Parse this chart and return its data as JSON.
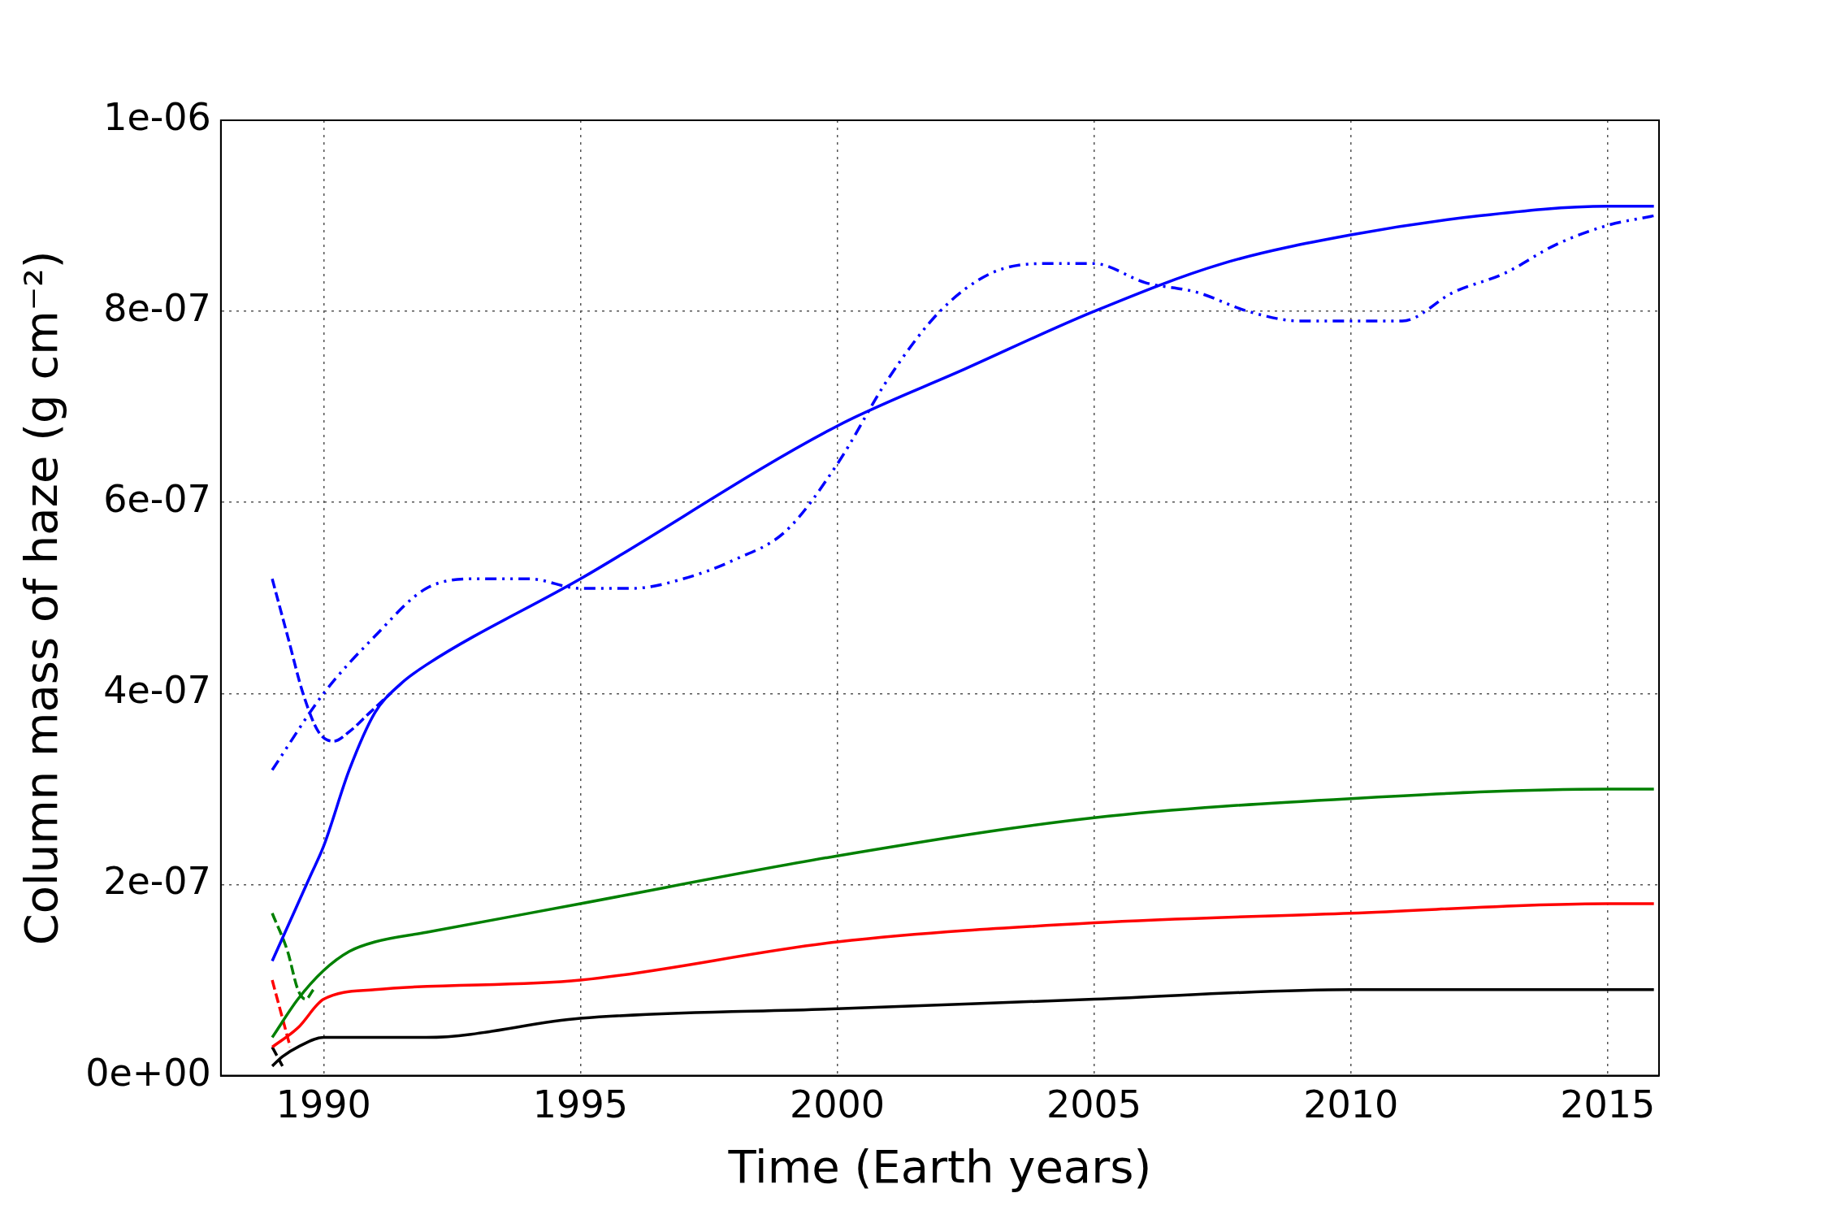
{
  "chart_data": {
    "type": "line",
    "xlabel": "Time (Earth years)",
    "ylabel": "Column mass of haze (g cm⁻²)",
    "xlim": [
      1988,
      2016
    ],
    "xticks": [
      1990,
      1995,
      2000,
      2005,
      2010,
      2015
    ],
    "ylim": [
      0,
      1e-06
    ],
    "yticks": [
      {
        "value": 0,
        "label": "0e+00"
      },
      {
        "value": 2e-07,
        "label": "2e-07"
      },
      {
        "value": 4e-07,
        "label": "4e-07"
      },
      {
        "value": 6e-07,
        "label": "6e-07"
      },
      {
        "value": 8e-07,
        "label": "8e-07"
      },
      {
        "value": 1e-06,
        "label": "1e-06"
      }
    ],
    "grid": true,
    "legend": false,
    "marker": "none",
    "series": [
      {
        "color": "#0000ff",
        "line_style": "solid",
        "x": [
          1989.0,
          1989.25,
          1989.5,
          1989.75,
          1990,
          1990.5,
          1991,
          1991.5,
          1992,
          1995,
          2000,
          2002.5,
          2005,
          2007.5,
          2010,
          2012.5,
          2015,
          2015.9
        ],
        "values": [
          1.2e-07,
          1.5e-07,
          1.8e-07,
          2.1e-07,
          2.4e-07,
          3.2e-07,
          3.8e-07,
          4.1e-07,
          4.3e-07,
          5.2e-07,
          6.8e-07,
          7.4e-07,
          8e-07,
          8.5e-07,
          8.8e-07,
          9e-07,
          9.1e-07,
          9.1e-07
        ]
      },
      {
        "color": "#0000ff",
        "line_style": "dotted",
        "x": [
          1989.0,
          1990,
          1991,
          1992,
          1993,
          1994,
          1995,
          1996,
          1997,
          1998,
          1999,
          2000,
          2001,
          2002,
          2003,
          2004,
          2005,
          2006,
          2007,
          2008,
          2009,
          2010,
          2011,
          2012,
          2013,
          2014,
          2015,
          2015.9
        ],
        "values": [
          3.2e-07,
          4e-07,
          4.6e-07,
          5.1e-07,
          5.2e-07,
          5.2e-07,
          5.1e-07,
          5.1e-07,
          5.2e-07,
          5.4e-07,
          5.7e-07,
          6.4e-07,
          7.3e-07,
          8e-07,
          8.4e-07,
          8.5e-07,
          8.5e-07,
          8.3e-07,
          8.2e-07,
          8e-07,
          7.9e-07,
          7.9e-07,
          7.9e-07,
          8.2e-07,
          8.4e-07,
          8.7e-07,
          8.9e-07,
          9e-07
        ]
      },
      {
        "color": "#0000ff",
        "line_style": "dashed",
        "x": [
          1989.0,
          1989.3,
          1989.6,
          1989.9,
          1990.2,
          1990.5,
          1990.9,
          1991.3
        ],
        "values": [
          5.2e-07,
          4.6e-07,
          4e-07,
          3.6e-07,
          3.5e-07,
          3.6e-07,
          3.8e-07,
          4e-07
        ]
      },
      {
        "color": "#008000",
        "line_style": "solid",
        "x": [
          1989.0,
          1989.5,
          1990,
          1990.5,
          1991,
          1992,
          1995,
          2000,
          2005,
          2010,
          2015,
          2015.9
        ],
        "values": [
          4e-08,
          8e-08,
          1.1e-07,
          1.3e-07,
          1.4e-07,
          1.5e-07,
          1.8e-07,
          2.3e-07,
          2.7e-07,
          2.9e-07,
          3e-07,
          3e-07
        ]
      },
      {
        "color": "#008000",
        "line_style": "dashed",
        "x": [
          1989.0,
          1989.3,
          1989.5,
          1989.65,
          1989.8
        ],
        "values": [
          1.7e-07,
          1.3e-07,
          9e-08,
          8e-08,
          9e-08
        ]
      },
      {
        "color": "#ff0000",
        "line_style": "solid",
        "x": [
          1989.0,
          1989.5,
          1990,
          1991,
          1995,
          2000,
          2005,
          2010,
          2015,
          2015.9
        ],
        "values": [
          3e-08,
          5e-08,
          8e-08,
          9e-08,
          1e-07,
          1.4e-07,
          1.6e-07,
          1.7e-07,
          1.8e-07,
          1.8e-07
        ]
      },
      {
        "color": "#ff0000",
        "line_style": "dashed",
        "x": [
          1989.0,
          1989.2,
          1989.35
        ],
        "values": [
          1e-07,
          6e-08,
          3e-08
        ]
      },
      {
        "color": "#000000",
        "line_style": "solid",
        "x": [
          1989.0,
          1989.2,
          1989.5,
          1990,
          1992,
          1995,
          2000,
          2005,
          2010,
          2015,
          2015.9
        ],
        "values": [
          1e-08,
          2e-08,
          3e-08,
          4e-08,
          4e-08,
          6e-08,
          7e-08,
          8e-08,
          9e-08,
          9e-08,
          9e-08
        ]
      },
      {
        "color": "#000000",
        "line_style": "dashed",
        "x": [
          1989.0,
          1989.2
        ],
        "values": [
          3e-08,
          1e-08
        ]
      }
    ]
  }
}
